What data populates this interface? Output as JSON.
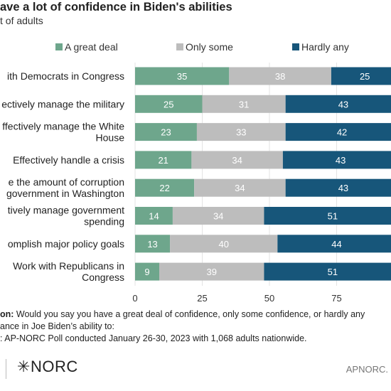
{
  "header": {
    "title": "ave a lot of confidence in Biden's abilities",
    "subtitle": "t of adults"
  },
  "note": {
    "question_label": "on:",
    "question_line1": " Would you say you have a great deal of confidence, only some confidence, or hardly any",
    "question_line2": "ance in Joe Biden’s ability to:",
    "source_line": ": AP-NORC Poll conducted January 26-30, 2023 with 1,068 adults nationwide."
  },
  "footer": {
    "logo_text": "NORC",
    "logo_mark": "✳",
    "source_mark": "APNORC."
  },
  "colors": {
    "great_deal": "#6ea68c",
    "only_some": "#bdbdbd",
    "hardly_any": "#17567a",
    "grid": "#e3e3e3",
    "label_text": "#ffffff"
  },
  "chart_data": {
    "type": "bar",
    "orientation": "horizontal",
    "stacked": true,
    "categories": [
      [
        "ith Democrats in Congress"
      ],
      [
        "ectively manage the military"
      ],
      [
        "ffectively manage the White",
        "House"
      ],
      [
        "Effectively handle a crisis"
      ],
      [
        "e the amount of corruption",
        "government in Washington"
      ],
      [
        "tively manage government",
        "spending"
      ],
      [
        "omplish major policy goals"
      ],
      [
        "Work with Republicans in",
        "Congress"
      ]
    ],
    "series": [
      {
        "name": "A great deal",
        "values": [
          35,
          25,
          23,
          21,
          22,
          14,
          13,
          9
        ]
      },
      {
        "name": "Only some",
        "values": [
          38,
          31,
          33,
          34,
          34,
          34,
          40,
          39
        ]
      },
      {
        "name": "Hardly any",
        "values": [
          25,
          43,
          42,
          43,
          43,
          51,
          44,
          51
        ]
      }
    ],
    "xlim": [
      0,
      100
    ],
    "xticks": [
      0,
      25,
      50,
      75
    ],
    "grid": true,
    "legend": "top"
  }
}
